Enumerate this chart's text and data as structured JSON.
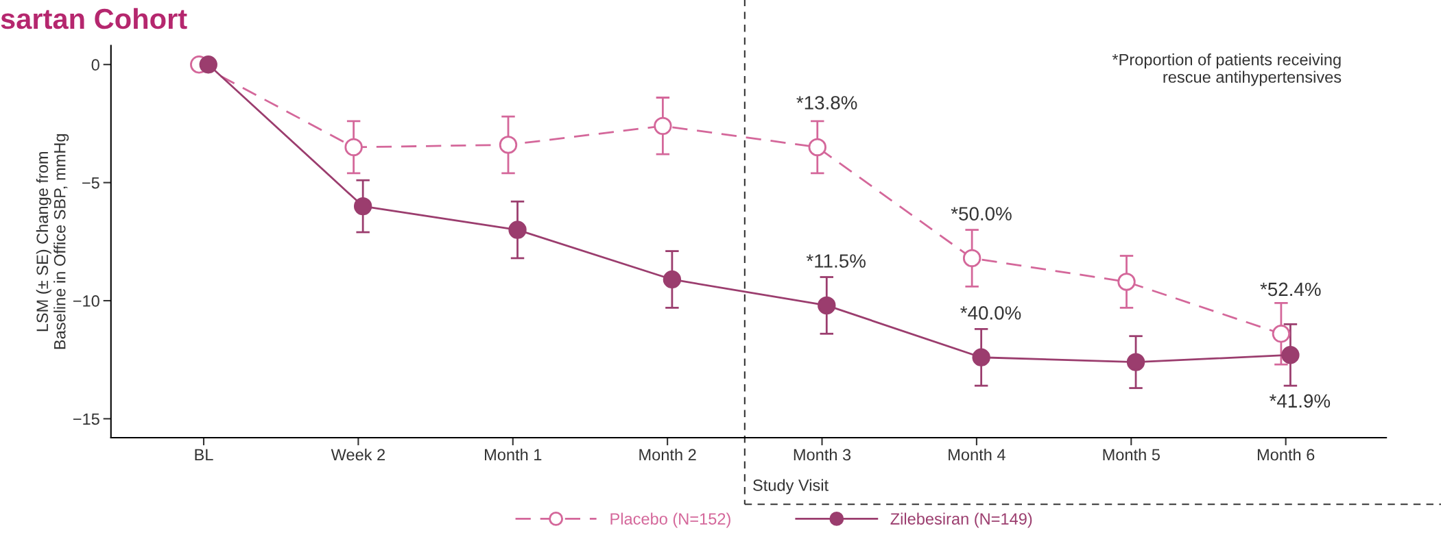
{
  "chart_data": {
    "type": "line",
    "title": "sartan Cohort",
    "ylabel": "LSM (± SE) Change from\nBaseline in Office SBP, mmHg",
    "categories": [
      "BL",
      "Week 2",
      "Month 1",
      "Month 2",
      "Month 3",
      "Month 4",
      "Month 5",
      "Month 6"
    ],
    "ylim": [
      -15.8,
      0.8
    ],
    "yticks": [
      {
        "value": 0,
        "label": "0"
      },
      {
        "value": -5,
        "label": "−5"
      },
      {
        "value": -10,
        "label": "−10"
      },
      {
        "value": -15,
        "label": "−15"
      }
    ],
    "series": [
      {
        "name": "Placebo (N=152)",
        "color": "#d4679a",
        "line_style": "dashed",
        "marker": "circle",
        "values": [
          0,
          -3.5,
          -3.4,
          -2.6,
          -3.5,
          -8.2,
          -9.2,
          -11.4
        ],
        "errors": [
          null,
          1.1,
          1.2,
          1.2,
          1.1,
          1.2,
          1.1,
          1.3
        ]
      },
      {
        "name": "Zilebesiran (N=149)",
        "color": "#9b3d6e",
        "line_style": "solid",
        "marker": "circle",
        "values": [
          0,
          -6.0,
          -7.0,
          -9.1,
          -10.2,
          -12.4,
          -12.6,
          -12.3
        ],
        "errors": [
          null,
          1.1,
          1.2,
          1.2,
          1.2,
          1.2,
          1.1,
          1.3
        ]
      }
    ],
    "annotations": [
      "*Proportion of patients receiving\nrescue antihypertensives",
      "Study Visit",
      {
        "text": "*13.8%",
        "x": "Month 3",
        "y": -3.5
      },
      {
        "text": "*50.0%",
        "x": "Month 4",
        "y": -8.2
      },
      {
        "text": "*52.4%",
        "x": "Month 6",
        "y": -11.4
      },
      {
        "text": "*11.5%",
        "x": "Month 3",
        "y": -10.2
      },
      {
        "text": "*40.0%",
        "x": "Month 4",
        "y": -12.4
      },
      {
        "text": "*41.9%",
        "x": "Month 6",
        "y": -12.3
      }
    ],
    "legend": "bottom",
    "grid": false
  }
}
